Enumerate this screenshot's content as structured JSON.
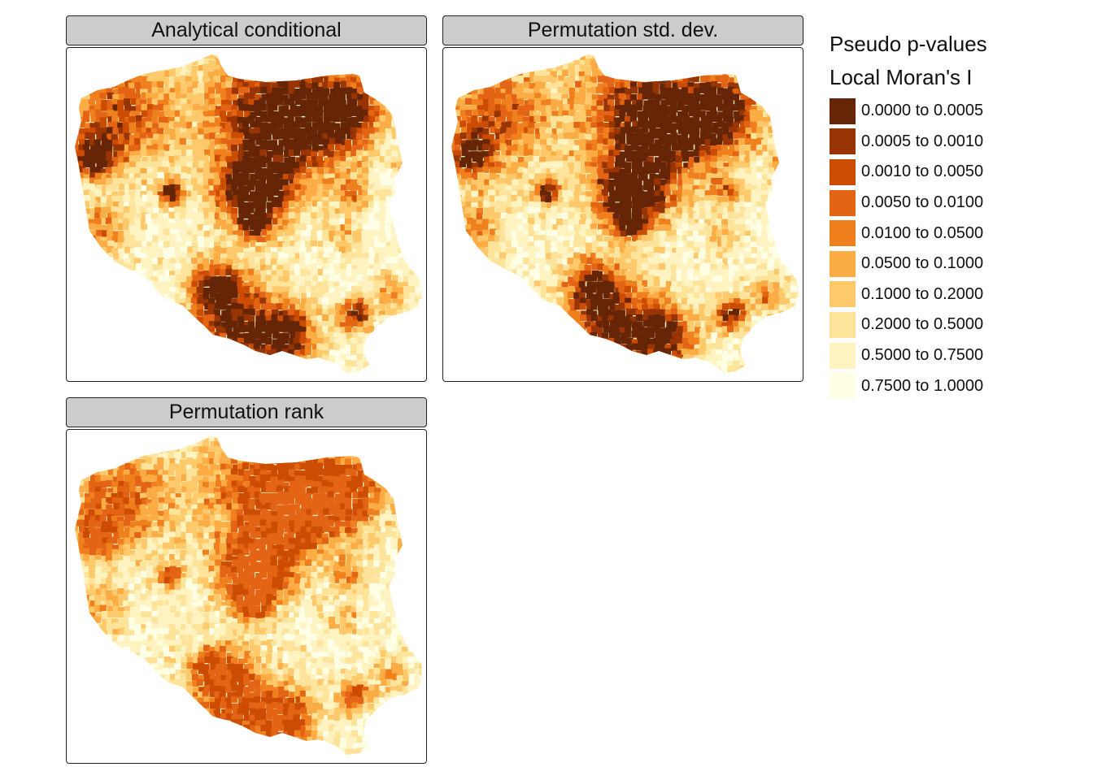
{
  "panels": [
    {
      "title": "Analytical conditional",
      "variant": "analytical"
    },
    {
      "title": "Permutation std. dev.",
      "variant": "stddev"
    },
    {
      "title": "Permutation rank",
      "variant": "rank"
    }
  ],
  "legend": {
    "title_line1": "Pseudo p-values",
    "title_line2": "Local Moran's I",
    "items": [
      {
        "label": "0.0000 to 0.0005",
        "color": "#662506"
      },
      {
        "label": "0.0005 to 0.0010",
        "color": "#993404"
      },
      {
        "label": "0.0010 to 0.0050",
        "color": "#cc4c02"
      },
      {
        "label": "0.0050 to 0.0100",
        "color": "#e36414"
      },
      {
        "label": "0.0100 to 0.0500",
        "color": "#f0801e"
      },
      {
        "label": "0.0500 to 0.1000",
        "color": "#fbac44"
      },
      {
        "label": "0.1000 to 0.2000",
        "color": "#fec96a"
      },
      {
        "label": "0.2000 to 0.5000",
        "color": "#fee39a"
      },
      {
        "label": "0.5000 to 0.7500",
        "color": "#fff3c2"
      },
      {
        "label": "0.7500 to 1.0000",
        "color": "#ffffe5"
      }
    ]
  }
}
